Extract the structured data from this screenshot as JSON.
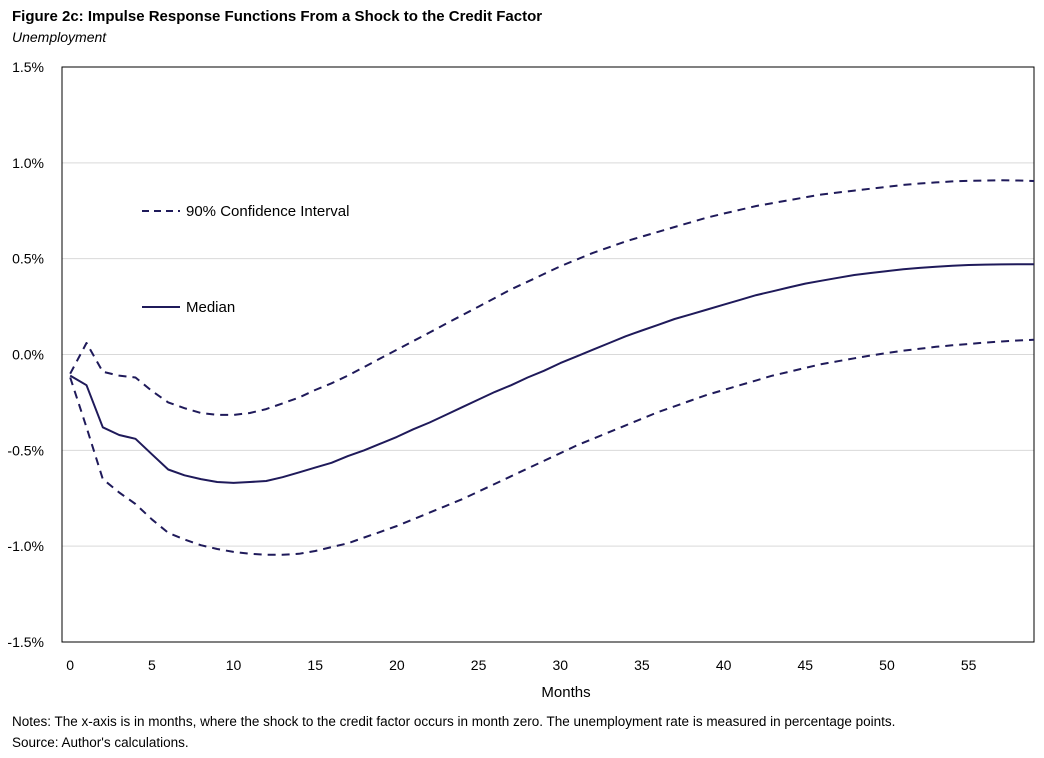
{
  "figure": {
    "title": "Figure 2c: Impulse Response Functions From a Shock to the Credit Factor",
    "subtitle": "Unemployment",
    "notes": "Notes: The x-axis is in months, where the shock to the credit factor occurs in month zero. The unemployment rate is measured in percentage points.",
    "source": "Source: Author's calculations."
  },
  "colors": {
    "series": "#1f1a5a",
    "grid": "#d9d9d9",
    "frame": "#000000"
  },
  "chart_data": {
    "type": "line",
    "title": "Figure 2c: Impulse Response Functions From a Shock to the Credit Factor",
    "subtitle": "Unemployment",
    "xlabel": "Months",
    "ylabel": "",
    "xlim": [
      -0.5,
      59
    ],
    "ylim": [
      -1.5,
      1.5
    ],
    "x_ticks": [
      0,
      5,
      10,
      15,
      20,
      25,
      30,
      35,
      40,
      45,
      50,
      55
    ],
    "x_tick_labels": [
      "0",
      "5",
      "10",
      "15",
      "20",
      "25",
      "30",
      "35",
      "40",
      "45",
      "50",
      "55"
    ],
    "y_ticks": [
      1.5,
      1.0,
      0.5,
      0.0,
      -0.5,
      -1.0,
      -1.5
    ],
    "y_tick_labels": [
      "1.5%",
      "1.0%",
      "0.5%",
      "0.0%",
      "-0.5%",
      "-1.0%",
      "-1.5%"
    ],
    "grid": true,
    "legend": {
      "placement": "upper-left",
      "entries": [
        {
          "label": "90% Confidence Interval",
          "style": "dashed"
        },
        {
          "label": "Median",
          "style": "solid"
        }
      ]
    },
    "series": [
      {
        "name": "Median",
        "style": "solid",
        "x": [
          0,
          1,
          2,
          3,
          4,
          5,
          6,
          7,
          8,
          9,
          10,
          11,
          12,
          13,
          14,
          15,
          16,
          17,
          18,
          19,
          20,
          21,
          22,
          23,
          24,
          25,
          26,
          27,
          28,
          29,
          30,
          31,
          32,
          33,
          34,
          35,
          36,
          37,
          38,
          39,
          40,
          41,
          42,
          43,
          44,
          45,
          46,
          47,
          48,
          49,
          50,
          51,
          52,
          53,
          54,
          55,
          56,
          57,
          58,
          59
        ],
        "values": [
          -0.11,
          -0.16,
          -0.38,
          -0.42,
          -0.44,
          -0.52,
          -0.6,
          -0.63,
          -0.65,
          -0.665,
          -0.67,
          -0.665,
          -0.66,
          -0.64,
          -0.615,
          -0.59,
          -0.565,
          -0.53,
          -0.5,
          -0.465,
          -0.43,
          -0.39,
          -0.355,
          -0.315,
          -0.275,
          -0.235,
          -0.195,
          -0.16,
          -0.12,
          -0.085,
          -0.045,
          -0.01,
          0.025,
          0.06,
          0.095,
          0.125,
          0.155,
          0.185,
          0.21,
          0.235,
          0.26,
          0.285,
          0.31,
          0.33,
          0.35,
          0.37,
          0.385,
          0.4,
          0.415,
          0.425,
          0.435,
          0.445,
          0.452,
          0.458,
          0.463,
          0.467,
          0.469,
          0.47,
          0.471,
          0.471
        ]
      },
      {
        "name": "90% Confidence Interval (upper)",
        "style": "dashed",
        "x": [
          0,
          1,
          2,
          3,
          4,
          5,
          6,
          7,
          8,
          9,
          10,
          11,
          12,
          13,
          14,
          15,
          16,
          17,
          18,
          19,
          20,
          21,
          22,
          23,
          24,
          25,
          26,
          27,
          28,
          29,
          30,
          31,
          32,
          33,
          34,
          35,
          36,
          37,
          38,
          39,
          40,
          41,
          42,
          43,
          44,
          45,
          46,
          47,
          48,
          49,
          50,
          51,
          52,
          53,
          54,
          55,
          56,
          57,
          58,
          59
        ],
        "values": [
          -0.1,
          0.06,
          -0.09,
          -0.11,
          -0.12,
          -0.19,
          -0.25,
          -0.28,
          -0.305,
          -0.315,
          -0.315,
          -0.305,
          -0.285,
          -0.255,
          -0.225,
          -0.185,
          -0.15,
          -0.11,
          -0.065,
          -0.02,
          0.025,
          0.07,
          0.115,
          0.16,
          0.205,
          0.25,
          0.295,
          0.34,
          0.38,
          0.42,
          0.46,
          0.495,
          0.53,
          0.56,
          0.59,
          0.615,
          0.64,
          0.665,
          0.69,
          0.715,
          0.735,
          0.755,
          0.775,
          0.79,
          0.805,
          0.82,
          0.835,
          0.845,
          0.855,
          0.865,
          0.875,
          0.885,
          0.892,
          0.898,
          0.903,
          0.906,
          0.908,
          0.909,
          0.908,
          0.905
        ]
      },
      {
        "name": "90% Confidence Interval (lower)",
        "style": "dashed",
        "x": [
          0,
          1,
          2,
          3,
          4,
          5,
          6,
          7,
          8,
          9,
          10,
          11,
          12,
          13,
          14,
          15,
          16,
          17,
          18,
          19,
          20,
          21,
          22,
          23,
          24,
          25,
          26,
          27,
          28,
          29,
          30,
          31,
          32,
          33,
          34,
          35,
          36,
          37,
          38,
          39,
          40,
          41,
          42,
          43,
          44,
          45,
          46,
          47,
          48,
          49,
          50,
          51,
          52,
          53,
          54,
          55,
          56,
          57,
          58,
          59
        ],
        "values": [
          -0.12,
          -0.38,
          -0.65,
          -0.72,
          -0.78,
          -0.86,
          -0.93,
          -0.965,
          -0.995,
          -1.015,
          -1.03,
          -1.04,
          -1.045,
          -1.045,
          -1.04,
          -1.025,
          -1.005,
          -0.985,
          -0.955,
          -0.925,
          -0.895,
          -0.86,
          -0.825,
          -0.79,
          -0.755,
          -0.715,
          -0.675,
          -0.635,
          -0.595,
          -0.555,
          -0.515,
          -0.475,
          -0.44,
          -0.405,
          -0.37,
          -0.335,
          -0.3,
          -0.27,
          -0.24,
          -0.21,
          -0.185,
          -0.16,
          -0.135,
          -0.11,
          -0.09,
          -0.07,
          -0.05,
          -0.035,
          -0.02,
          -0.005,
          0.008,
          0.02,
          0.03,
          0.04,
          0.048,
          0.055,
          0.062,
          0.068,
          0.073,
          0.077
        ]
      }
    ]
  }
}
